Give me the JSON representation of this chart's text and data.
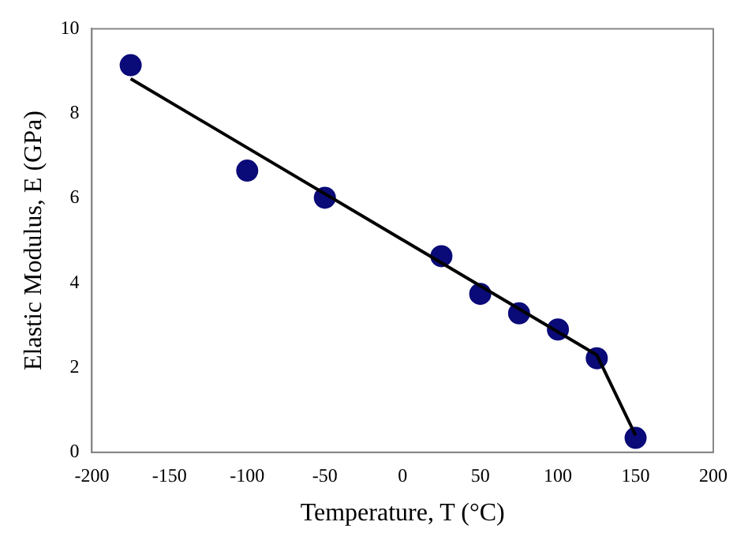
{
  "chart_data": {
    "type": "scatter",
    "xlabel": "Temperature, T (°C)",
    "ylabel": "Elastic Modulus, E (GPa)",
    "xlim": [
      -200,
      200
    ],
    "xticks": [
      -200,
      -150,
      -100,
      -50,
      0,
      50,
      100,
      150,
      200
    ],
    "ylim": [
      0,
      10
    ],
    "yticks": [
      0,
      2,
      4,
      6,
      8,
      10
    ],
    "grid": false,
    "legend": false,
    "marker": "circle",
    "series": [
      {
        "color": "#0a0a78",
        "x": [
          -175,
          -100,
          -50,
          25,
          50,
          75,
          100,
          125,
          150
        ],
        "values": [
          9.14,
          6.65,
          6.01,
          4.63,
          3.74,
          3.28,
          2.9,
          2.22,
          0.34
        ]
      },
      {
        "type": "line",
        "color": "#000000",
        "x": [
          -175,
          125,
          150
        ],
        "values": [
          8.82,
          2.3,
          0.4
        ],
        "line_style": "solid",
        "marker": "none"
      }
    ]
  }
}
